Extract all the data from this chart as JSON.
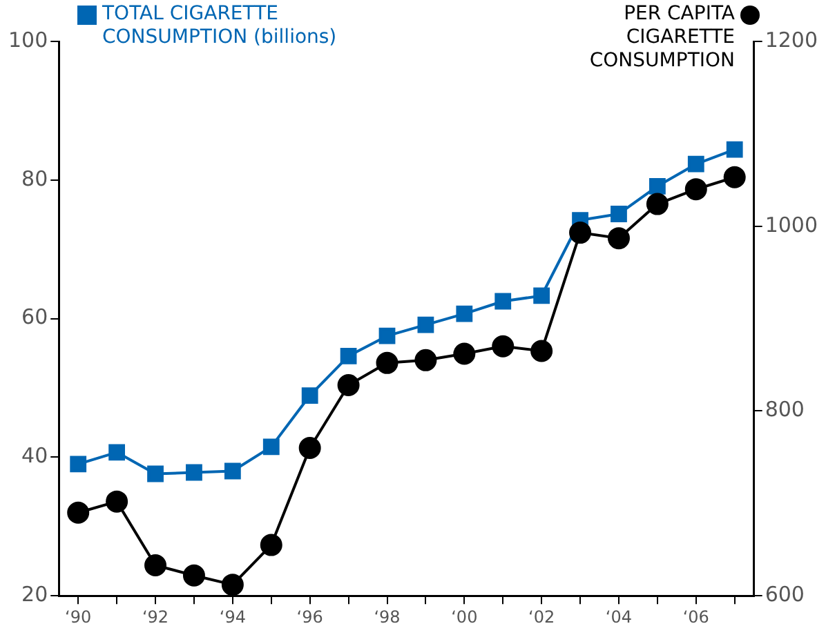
{
  "chart_data": {
    "type": "line",
    "categories": [
      "‘90",
      null,
      "‘92",
      null,
      "‘94",
      null,
      "‘96",
      null,
      "‘98",
      null,
      "‘00",
      null,
      "‘02",
      null,
      "‘04",
      null,
      "‘06",
      null
    ],
    "series": [
      {
        "name": "TOTAL CIGARETTE CONSUMPTION (billions)",
        "color": "#0066b3",
        "marker": "square",
        "values": [
          39.0,
          40.7,
          37.6,
          37.8,
          38.0,
          41.5,
          48.9,
          54.6,
          57.5,
          59.1,
          60.7,
          62.5,
          63.3,
          74.2,
          75.1,
          79.1,
          82.3,
          84.4
        ]
      },
      {
        "name": "PER CAPITA CIGARETTE CONSUMPTION",
        "color": "#000000",
        "marker": "circle",
        "axis": "y2",
        "values": [
          690,
          702,
          633,
          622,
          612,
          655,
          760,
          828,
          852,
          855,
          862,
          870,
          865,
          993,
          987,
          1024,
          1040,
          1053
        ]
      }
    ],
    "ylim": [
      20,
      100
    ],
    "yticks": [
      20,
      40,
      60,
      80,
      100
    ],
    "y2lim": [
      600,
      1200
    ],
    "y2ticks": [
      600,
      800,
      1000,
      1200
    ],
    "grid": false,
    "legend": "top"
  }
}
